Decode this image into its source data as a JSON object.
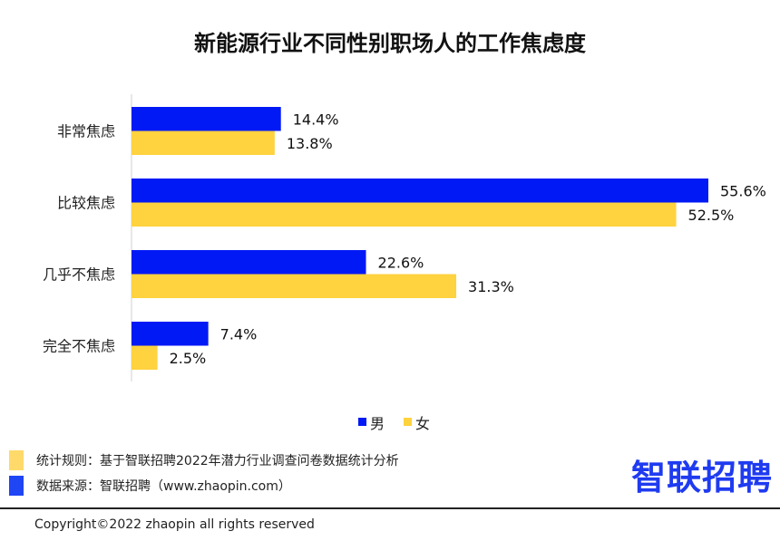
{
  "chart_data": {
    "type": "bar",
    "orientation": "horizontal",
    "title": "新能源行业不同性别职场人的工作焦虑度",
    "categories": [
      "非常焦虑",
      "比较焦虑",
      "几乎不焦虑",
      "完全不焦虑"
    ],
    "series": [
      {
        "name": "男",
        "values": [
          14.4,
          55.6,
          22.6,
          7.4
        ],
        "labels": [
          "14.4%",
          "55.6%",
          "22.6%",
          "7.4%"
        ],
        "color": "#0019F5"
      },
      {
        "name": "女",
        "values": [
          13.8,
          52.5,
          31.3,
          2.5
        ],
        "labels": [
          "13.8%",
          "52.5%",
          "31.3%",
          "2.5%"
        ],
        "color": "#FFD23F"
      }
    ],
    "grid": false,
    "legend": "bottom"
  },
  "notes": [
    {
      "text": "统计规则：基于智联招聘2022年潜力行业调查问卷数据统计分析",
      "color": "#FFD96A"
    },
    {
      "text": "数据来源：智联招聘（www.zhaopin.com）",
      "color": "#1F45F5"
    }
  ],
  "logo": "智联招聘",
  "copyright": "Copyright©2022 zhaopin all rights reserved"
}
